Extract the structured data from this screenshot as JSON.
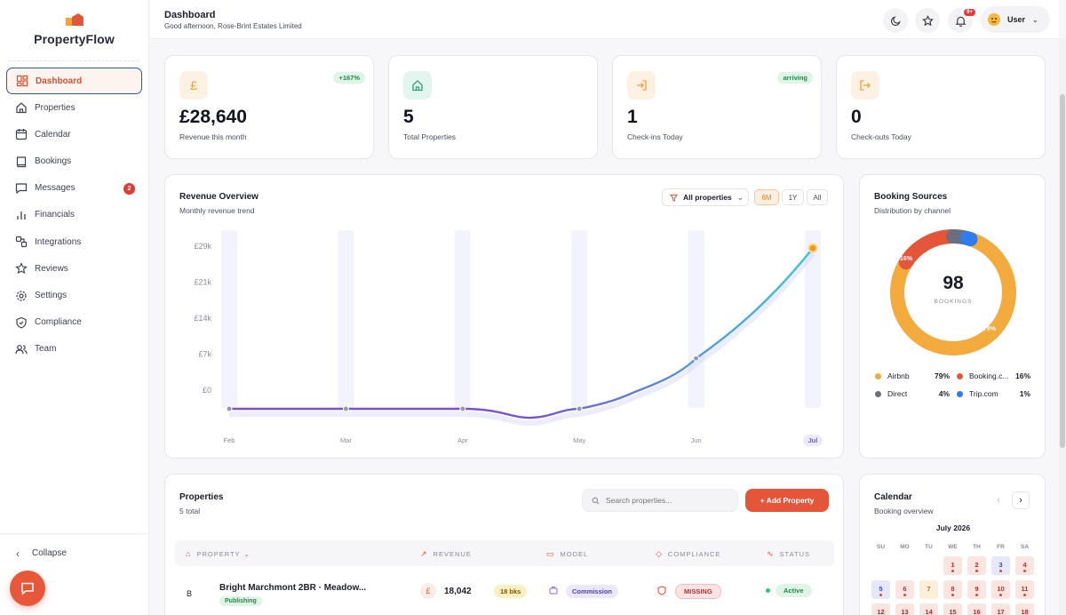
{
  "brand": {
    "name": "PropertyFlow"
  },
  "nav": {
    "items": [
      {
        "label": "Dashboard"
      },
      {
        "label": "Properties"
      },
      {
        "label": "Calendar"
      },
      {
        "label": "Bookings"
      },
      {
        "label": "Messages",
        "badge": "2"
      },
      {
        "label": "Financials"
      },
      {
        "label": "Integrations"
      },
      {
        "label": "Reviews"
      },
      {
        "label": "Settings"
      },
      {
        "label": "Compliance"
      },
      {
        "label": "Team"
      }
    ],
    "collapse_label": "Collapse"
  },
  "header": {
    "title": "Dashboard",
    "subtitle": "Good afternoon, Rose-Brint Estates Limited",
    "notif_badge": "9+",
    "user_label": "User"
  },
  "kpis": [
    {
      "icon": "pound-icon",
      "value": "£28,640",
      "label": "Revenue this month",
      "tag": "+167%"
    },
    {
      "icon": "home-icon",
      "value": "5",
      "label": "Total Properties"
    },
    {
      "icon": "login-icon",
      "value": "1",
      "label": "Check-ins Today",
      "tag": "arriving"
    },
    {
      "icon": "logout-icon",
      "value": "0",
      "label": "Check-outs Today"
    }
  ],
  "revenue": {
    "title": "Revenue Overview",
    "subtitle": "Monthly revenue trend",
    "filter_label": "All properties",
    "ranges": [
      "6M",
      "1Y",
      "All"
    ],
    "active_range": "6M"
  },
  "chart_data": {
    "type": "line",
    "x": [
      "Feb",
      "Mar",
      "Apr",
      "May",
      "Jun",
      "Jul"
    ],
    "series": [
      {
        "values": [
          0,
          0,
          0,
          0,
          9000,
          28640
        ]
      }
    ],
    "yticks": [
      "£0",
      "£7k",
      "£14k",
      "£21k",
      "£29k"
    ],
    "ylim": [
      0,
      29000
    ],
    "highlight_x": "Jul",
    "colors": {
      "start": "#7b4fd6",
      "end": "#36c9d8",
      "marker": "#f59e0b"
    }
  },
  "sources": {
    "title": "Booking Sources",
    "subtitle": "Distribution by channel",
    "total": "98",
    "total_label": "BOOKINGS",
    "slice_labels": {
      "airbnb": "79%",
      "booking": "16%"
    },
    "items": [
      {
        "name": "Airbnb",
        "pct": "79%",
        "value": 79,
        "color": "#f4ab3d"
      },
      {
        "name": "Booking.c...",
        "pct": "16%",
        "value": 16,
        "color": "#e4553a"
      },
      {
        "name": "Direct",
        "pct": "4%",
        "value": 4,
        "color": "#6b6f7d"
      },
      {
        "name": "Trip.com",
        "pct": "1%",
        "value": 1,
        "color": "#2f7bf0"
      }
    ]
  },
  "properties": {
    "title": "Properties",
    "count_label": "5 total",
    "search_placeholder": "Search properties...",
    "add_label": "+ Add Property",
    "columns": [
      "PROPERTY",
      "REVENUE",
      "MODEL",
      "COMPLIANCE",
      "STATUS"
    ],
    "rows": [
      {
        "initial": "B",
        "name": "Bright Marchmont 2BR · Meadow...",
        "tag": "Publishing",
        "currency": "£",
        "revenue": "18,042",
        "bookings": "18 bks",
        "model": "Commission",
        "compliance": "MISSING",
        "status": "Active"
      }
    ]
  },
  "calendar": {
    "title": "Calendar",
    "subtitle": "Booking overview",
    "month": "July 2026",
    "dows": [
      "SU",
      "MO",
      "TU",
      "WE",
      "TH",
      "FR",
      "SA"
    ],
    "days": [
      "1",
      "2",
      "3",
      "4",
      "5",
      "6",
      "7",
      "8",
      "9",
      "10",
      "11",
      "12",
      "13",
      "14",
      "15",
      "16",
      "17",
      "18"
    ]
  }
}
